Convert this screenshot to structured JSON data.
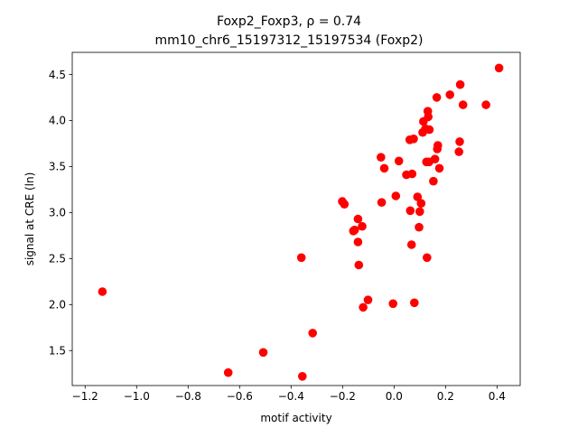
{
  "chart_data": {
    "type": "scatter",
    "title_line1": "Foxp2_Foxp3, ρ = 0.74",
    "title_line2": "mm10_chr6_15197312_15197534 (Foxp2)",
    "xlabel": "motif activity",
    "ylabel": "signal at CRE (ln)",
    "xlim": [
      -1.25,
      0.49
    ],
    "ylim": [
      1.12,
      4.74
    ],
    "xticks": [
      -1.2,
      -1.0,
      -0.8,
      -0.6,
      -0.4,
      -0.2,
      0.0,
      0.2,
      0.4
    ],
    "xtick_labels": [
      "−1.2",
      "−1.0",
      "−0.8",
      "−0.6",
      "−0.4",
      "−0.2",
      "0.0",
      "0.2",
      "0.4"
    ],
    "yticks": [
      1.5,
      2.0,
      2.5,
      3.0,
      3.5,
      4.0,
      4.5
    ],
    "ytick_labels": [
      "1.5",
      "2.0",
      "2.5",
      "3.0",
      "3.5",
      "4.0",
      "4.5"
    ],
    "grid": false,
    "marker_color": "#ff0000",
    "points": [
      {
        "x": -1.133,
        "y": 2.14
      },
      {
        "x": -0.644,
        "y": 1.26
      },
      {
        "x": -0.508,
        "y": 1.48
      },
      {
        "x": -0.36,
        "y": 2.51
      },
      {
        "x": -0.356,
        "y": 1.22
      },
      {
        "x": -0.316,
        "y": 1.69
      },
      {
        "x": -0.201,
        "y": 3.12
      },
      {
        "x": -0.193,
        "y": 3.09
      },
      {
        "x": -0.158,
        "y": 2.8
      },
      {
        "x": -0.153,
        "y": 2.81
      },
      {
        "x": -0.14,
        "y": 2.93
      },
      {
        "x": -0.14,
        "y": 2.68
      },
      {
        "x": -0.137,
        "y": 2.43
      },
      {
        "x": -0.124,
        "y": 2.85
      },
      {
        "x": -0.12,
        "y": 1.97
      },
      {
        "x": -0.101,
        "y": 2.05
      },
      {
        "x": -0.051,
        "y": 3.6
      },
      {
        "x": -0.048,
        "y": 3.11
      },
      {
        "x": -0.038,
        "y": 3.48
      },
      {
        "x": -0.004,
        "y": 2.01
      },
      {
        "x": 0.007,
        "y": 3.18
      },
      {
        "x": 0.019,
        "y": 3.56
      },
      {
        "x": 0.048,
        "y": 3.41
      },
      {
        "x": 0.061,
        "y": 3.79
      },
      {
        "x": 0.063,
        "y": 3.02
      },
      {
        "x": 0.068,
        "y": 2.65
      },
      {
        "x": 0.07,
        "y": 3.42
      },
      {
        "x": 0.076,
        "y": 3.8
      },
      {
        "x": 0.079,
        "y": 2.02
      },
      {
        "x": 0.091,
        "y": 3.17
      },
      {
        "x": 0.097,
        "y": 2.84
      },
      {
        "x": 0.1,
        "y": 3.01
      },
      {
        "x": 0.105,
        "y": 3.1
      },
      {
        "x": 0.111,
        "y": 3.87
      },
      {
        "x": 0.114,
        "y": 3.99
      },
      {
        "x": 0.122,
        "y": 3.91
      },
      {
        "x": 0.126,
        "y": 3.55
      },
      {
        "x": 0.128,
        "y": 2.51
      },
      {
        "x": 0.131,
        "y": 4.1
      },
      {
        "x": 0.133,
        "y": 4.04
      },
      {
        "x": 0.136,
        "y": 3.55
      },
      {
        "x": 0.137,
        "y": 3.9
      },
      {
        "x": 0.153,
        "y": 3.34
      },
      {
        "x": 0.159,
        "y": 3.58
      },
      {
        "x": 0.166,
        "y": 4.25
      },
      {
        "x": 0.168,
        "y": 3.69
      },
      {
        "x": 0.17,
        "y": 3.73
      },
      {
        "x": 0.176,
        "y": 3.48
      },
      {
        "x": 0.217,
        "y": 4.28
      },
      {
        "x": 0.252,
        "y": 3.66
      },
      {
        "x": 0.255,
        "y": 3.77
      },
      {
        "x": 0.257,
        "y": 4.39
      },
      {
        "x": 0.268,
        "y": 4.17
      },
      {
        "x": 0.357,
        "y": 4.17
      },
      {
        "x": 0.408,
        "y": 4.57
      }
    ]
  }
}
